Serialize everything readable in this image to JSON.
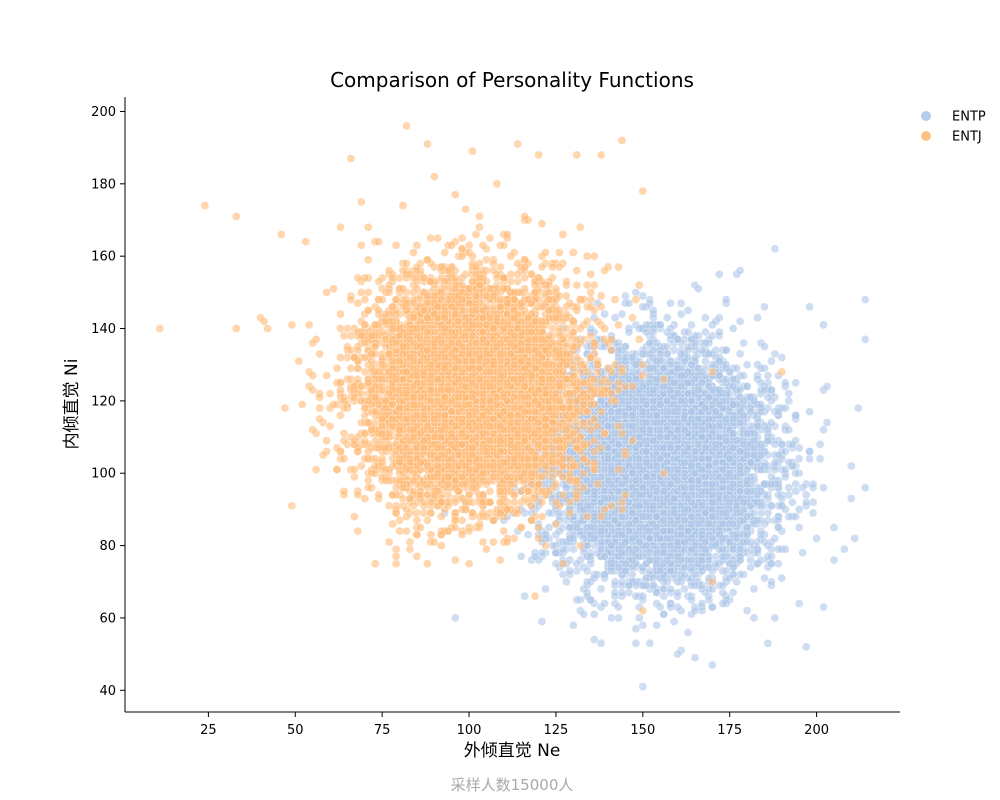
{
  "chart_data": {
    "type": "scatter",
    "title": "Comparison of Personality Functions",
    "xlabel": "外倾直觉 Ne",
    "ylabel": "内倾直觉 Ni",
    "caption": "采样人数15000人",
    "xlim": [
      1,
      224
    ],
    "ylim": [
      34,
      204
    ],
    "xticks": [
      25,
      50,
      75,
      100,
      125,
      150,
      175,
      200
    ],
    "yticks": [
      40,
      60,
      80,
      100,
      120,
      140,
      160,
      180,
      200
    ],
    "grid": false,
    "legend_position": "top-right, outside plot",
    "series": [
      {
        "name": "ENTP",
        "color": "#aec7e8",
        "opacity": 0.6,
        "center": [
          155,
          102
        ],
        "spread": [
          15,
          15
        ],
        "correlation": 0,
        "count": 7500,
        "outliers": [
          [
            150,
            41
          ],
          [
            170,
            47
          ],
          [
            160,
            50
          ],
          [
            165,
            49
          ],
          [
            121,
            59
          ],
          [
            138,
            53
          ],
          [
            186,
            53
          ],
          [
            197,
            52
          ],
          [
            188,
            162
          ],
          [
            214,
            148
          ],
          [
            214,
            137
          ],
          [
            214,
            96
          ],
          [
            212,
            118
          ],
          [
            208,
            79
          ],
          [
            210,
            93
          ],
          [
            205,
            85
          ],
          [
            200,
            82
          ],
          [
            198,
            146
          ],
          [
            202,
            141
          ],
          [
            203,
            124
          ],
          [
            172,
            155
          ],
          [
            178,
            156
          ],
          [
            185,
            146
          ],
          [
            156,
            61
          ],
          [
            180,
            62
          ],
          [
            195,
            64
          ]
        ]
      },
      {
        "name": "ENTJ",
        "color": "#ffbb78",
        "opacity": 0.6,
        "center": [
          100,
          123
        ],
        "spread": [
          15,
          15
        ],
        "correlation": 0,
        "count": 7500,
        "outliers": [
          [
            11,
            140
          ],
          [
            24,
            174
          ],
          [
            33,
            171
          ],
          [
            33,
            140
          ],
          [
            40,
            143
          ],
          [
            41,
            142
          ],
          [
            42,
            140
          ],
          [
            46,
            166
          ],
          [
            49,
            141
          ],
          [
            51,
            131
          ],
          [
            52,
            119
          ],
          [
            53,
            164
          ],
          [
            62,
            101
          ],
          [
            66,
            187
          ],
          [
            82,
            196
          ],
          [
            88,
            191
          ],
          [
            101,
            189
          ],
          [
            114,
            191
          ],
          [
            120,
            188
          ],
          [
            131,
            188
          ],
          [
            138,
            188
          ],
          [
            144,
            192
          ],
          [
            150,
            178
          ],
          [
            78,
            86
          ],
          [
            82,
            84
          ],
          [
            119,
            66
          ],
          [
            150,
            62
          ],
          [
            170,
            70
          ],
          [
            190,
            128
          ],
          [
            170,
            128
          ]
        ]
      }
    ]
  }
}
